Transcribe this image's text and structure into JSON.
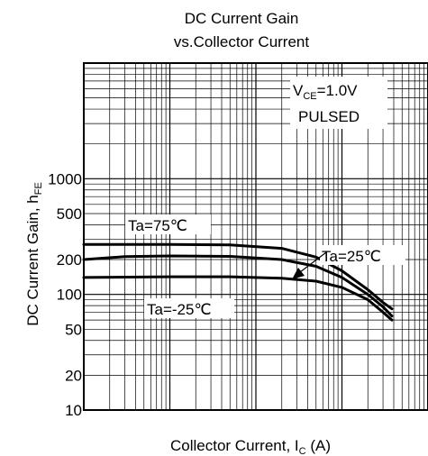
{
  "chart_data": {
    "type": "line",
    "title": "DC Current Gain",
    "subtitle": "vs.Collector Current",
    "xlabel": {
      "main": "Collector Current, I",
      "sub": "C",
      "unit": " (A)"
    },
    "ylabel": {
      "main": "DC Current Gain, h",
      "sub": "FE"
    },
    "y_scale": "log",
    "x_scale": "log",
    "ylim": [
      10,
      10000
    ],
    "xlim": [
      0.001,
      10
    ],
    "x_ticks": [],
    "y_ticks": [
      {
        "value": 1000,
        "label": "1000"
      },
      {
        "value": 500,
        "label": "500"
      },
      {
        "value": 200,
        "label": "200"
      },
      {
        "value": 100,
        "label": "100"
      },
      {
        "value": 50,
        "label": "50"
      },
      {
        "value": 20,
        "label": "20"
      },
      {
        "value": 10,
        "label": "10"
      }
    ],
    "grid": true,
    "conditions": {
      "line1_main": "V",
      "line1_sub": "CE",
      "line1_rest": "=1.0V",
      "line2": "PULSED"
    },
    "series": [
      {
        "name": "Ta=75℃",
        "x": [
          0.001,
          0.01,
          0.05,
          0.2,
          0.5,
          1,
          2,
          3,
          3.8
        ],
        "y": [
          270,
          270,
          268,
          250,
          210,
          160,
          110,
          85,
          75
        ]
      },
      {
        "name": "Ta=25℃",
        "x": [
          0.001,
          0.003,
          0.01,
          0.05,
          0.2,
          0.5,
          1,
          2,
          3,
          3.8
        ],
        "y": [
          200,
          212,
          215,
          213,
          200,
          175,
          140,
          100,
          78,
          65
        ]
      },
      {
        "name": "Ta=-25℃",
        "x": [
          0.001,
          0.01,
          0.05,
          0.2,
          0.5,
          1,
          2,
          3,
          3.8
        ],
        "y": [
          140,
          142,
          142,
          138,
          130,
          115,
          90,
          70,
          60
        ]
      }
    ]
  }
}
